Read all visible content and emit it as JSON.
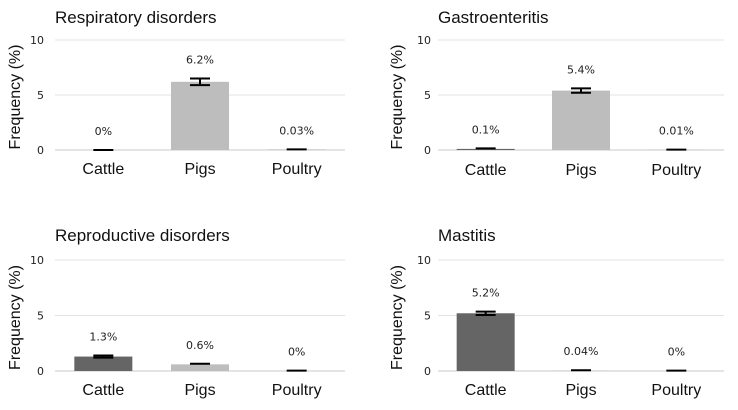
{
  "colors": {
    "cattle": "#656565",
    "pigs": "#bdbdbd",
    "poultry": "#9a9a9a"
  },
  "chart_data": [
    {
      "type": "bar",
      "title": "Respiratory disorders",
      "ylabel": "Frequency (%)",
      "xlabel": "",
      "ylim": [
        0,
        10
      ],
      "yticks": [
        "0",
        "5",
        "10"
      ],
      "categories": [
        "Cattle",
        "Pigs",
        "Poultry"
      ],
      "values": [
        0,
        6.2,
        0.03
      ],
      "errors": [
        0,
        0.3,
        0.03
      ],
      "data_labels": [
        "0%",
        "6.2%",
        "0.03%"
      ],
      "grid": true
    },
    {
      "type": "bar",
      "title": "Gastroenteritis",
      "ylabel": "Frequency (%)",
      "xlabel": "",
      "ylim": [
        0,
        10
      ],
      "yticks": [
        "0",
        "5",
        "10"
      ],
      "categories": [
        "Cattle",
        "Pigs",
        "Poultry"
      ],
      "values": [
        0.1,
        5.4,
        0.01
      ],
      "errors": [
        0.05,
        0.2,
        0.02
      ],
      "data_labels": [
        "0.1%",
        "5.4%",
        "0.01%"
      ],
      "grid": true
    },
    {
      "type": "bar",
      "title": "Reproductive disorders",
      "ylabel": "Frequency (%)",
      "xlabel": "",
      "ylim": [
        0,
        10
      ],
      "yticks": [
        "0",
        "5",
        "10"
      ],
      "categories": [
        "Cattle",
        "Pigs",
        "Poultry"
      ],
      "values": [
        1.3,
        0.6,
        0
      ],
      "errors": [
        0.1,
        0.05,
        0.03
      ],
      "data_labels": [
        "1.3%",
        "0.6%",
        "0%"
      ],
      "grid": true
    },
    {
      "type": "bar",
      "title": "Mastitis",
      "ylabel": "Frequency (%)",
      "xlabel": "",
      "ylim": [
        0,
        10
      ],
      "yticks": [
        "0",
        "5",
        "10"
      ],
      "categories": [
        "Cattle",
        "Pigs",
        "Poultry"
      ],
      "values": [
        5.2,
        0.04,
        0
      ],
      "errors": [
        0.15,
        0.03,
        0.03
      ],
      "data_labels": [
        "5.2%",
        "0.04%",
        "0%"
      ],
      "grid": true
    }
  ]
}
